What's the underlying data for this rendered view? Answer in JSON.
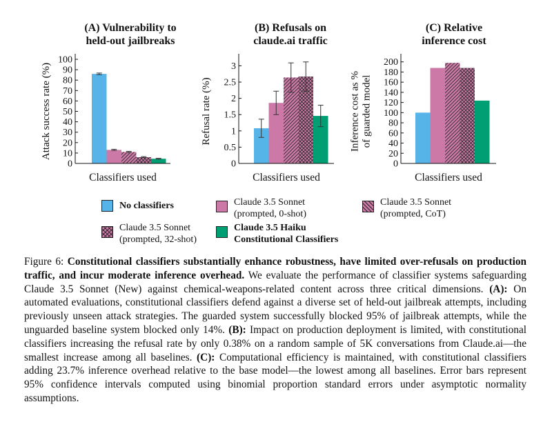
{
  "colors": {
    "none": "#56b4e9",
    "zero_shot": "#cc79a7",
    "cot": "#cc79a7",
    "shot32": "#cc79a7",
    "haiku": "#009e73"
  },
  "chart_data": [
    {
      "id": "A",
      "type": "bar",
      "title_lines": [
        "(A) Vulnerability to",
        "held-out jailbreaks"
      ],
      "xlabel": "Classifiers used",
      "ylabel_lines": [
        "Attack success rate (%)"
      ],
      "ylim": [
        0,
        100
      ],
      "yticks": [
        "0",
        "10",
        "20",
        "30",
        "40",
        "50",
        "60",
        "70",
        "80",
        "90",
        "100"
      ],
      "ytick_values": [
        0,
        10,
        20,
        30,
        40,
        50,
        60,
        70,
        80,
        90,
        100
      ],
      "values": [
        86,
        13,
        11,
        6,
        4.5
      ],
      "errors": [
        0.8,
        0.6,
        0.6,
        0.5,
        0.4
      ]
    },
    {
      "id": "B",
      "type": "bar",
      "title_lines": [
        "(B) Refusals on",
        "claude.ai traffic"
      ],
      "xlabel": "Classifiers used",
      "ylabel_lines": [
        "Refusal rate (%)"
      ],
      "ylim": [
        0,
        3.2
      ],
      "yticks": [
        "0",
        "0.5",
        "1",
        "1.5",
        "2",
        "2.5",
        "3"
      ],
      "ytick_values": [
        0,
        0.5,
        1,
        1.5,
        2,
        2.5,
        3
      ],
      "values": [
        1.08,
        1.86,
        2.64,
        2.67,
        1.46
      ],
      "errors": [
        0.28,
        0.36,
        0.45,
        0.45,
        0.33
      ]
    },
    {
      "id": "C",
      "type": "bar",
      "title_lines": [
        "(C) Relative",
        "inference cost"
      ],
      "xlabel": "Classifiers used",
      "ylabel_lines": [
        "Inference cost as %",
        "of guarded model"
      ],
      "ylim": [
        0,
        205
      ],
      "yticks": [
        "0",
        "20",
        "40",
        "60",
        "80",
        "100",
        "120",
        "140",
        "160",
        "180",
        "200"
      ],
      "ytick_values": [
        0,
        20,
        40,
        60,
        80,
        100,
        120,
        140,
        160,
        180,
        200
      ],
      "values": [
        100,
        188,
        198,
        188,
        123.7
      ],
      "errors": null
    }
  ],
  "legend": [
    {
      "key": "none",
      "pattern": "solid",
      "lines": [
        "No classifiers"
      ],
      "bold": true
    },
    {
      "key": "zero_shot",
      "pattern": "solid",
      "lines": [
        "Claude 3.5 Sonnet",
        "(prompted, 0-shot)"
      ],
      "bold": false
    },
    {
      "key": "cot",
      "pattern": "hatch",
      "lines": [
        "Claude 3.5 Sonnet",
        "(prompted, CoT)"
      ],
      "bold": false
    },
    {
      "key": "shot32",
      "pattern": "cross",
      "lines": [
        "Claude 3.5 Sonnet",
        "(prompted, 32-shot)"
      ],
      "bold": false
    },
    {
      "key": "haiku",
      "pattern": "solid",
      "lines": [
        "Claude 3.5 Haiku",
        "Constitutional Classifiers"
      ],
      "bold": true
    }
  ],
  "caption": {
    "label": "Figure 6: ",
    "bold_lead": "Constitutional classifiers substantially enhance robustness, have limited over-refusals on production traffic, and incur moderate inference overhead.",
    "intro": " We evaluate the performance of classifier systems safeguarding Claude 3.5 Sonnet (New) against chemical-weapons-related content across three critical dimensions. ",
    "a_tag": "(A):",
    "a_text": " On automated evaluations, constitutional classifiers defend against a diverse set of held-out jailbreak attempts, including previously unseen attack strategies. The guarded system successfully blocked 95% of jailbreak attempts, while the unguarded baseline system blocked only 14%. ",
    "b_tag": "(B):",
    "b_text": " Impact on production deployment is limited, with constitutional classifiers increasing the refusal rate by only 0.38% on a random sample of 5K conversations from Claude.ai—the smallest increase among all baselines. ",
    "c_tag": "(C):",
    "c_text": " Computational efficiency is maintained, with constitutional classifiers adding 23.7% inference overhead relative to the base model—the lowest among all baselines. Error bars represent 95% confidence intervals computed using binomial proportion standard errors under asymptotic normality assumptions."
  }
}
